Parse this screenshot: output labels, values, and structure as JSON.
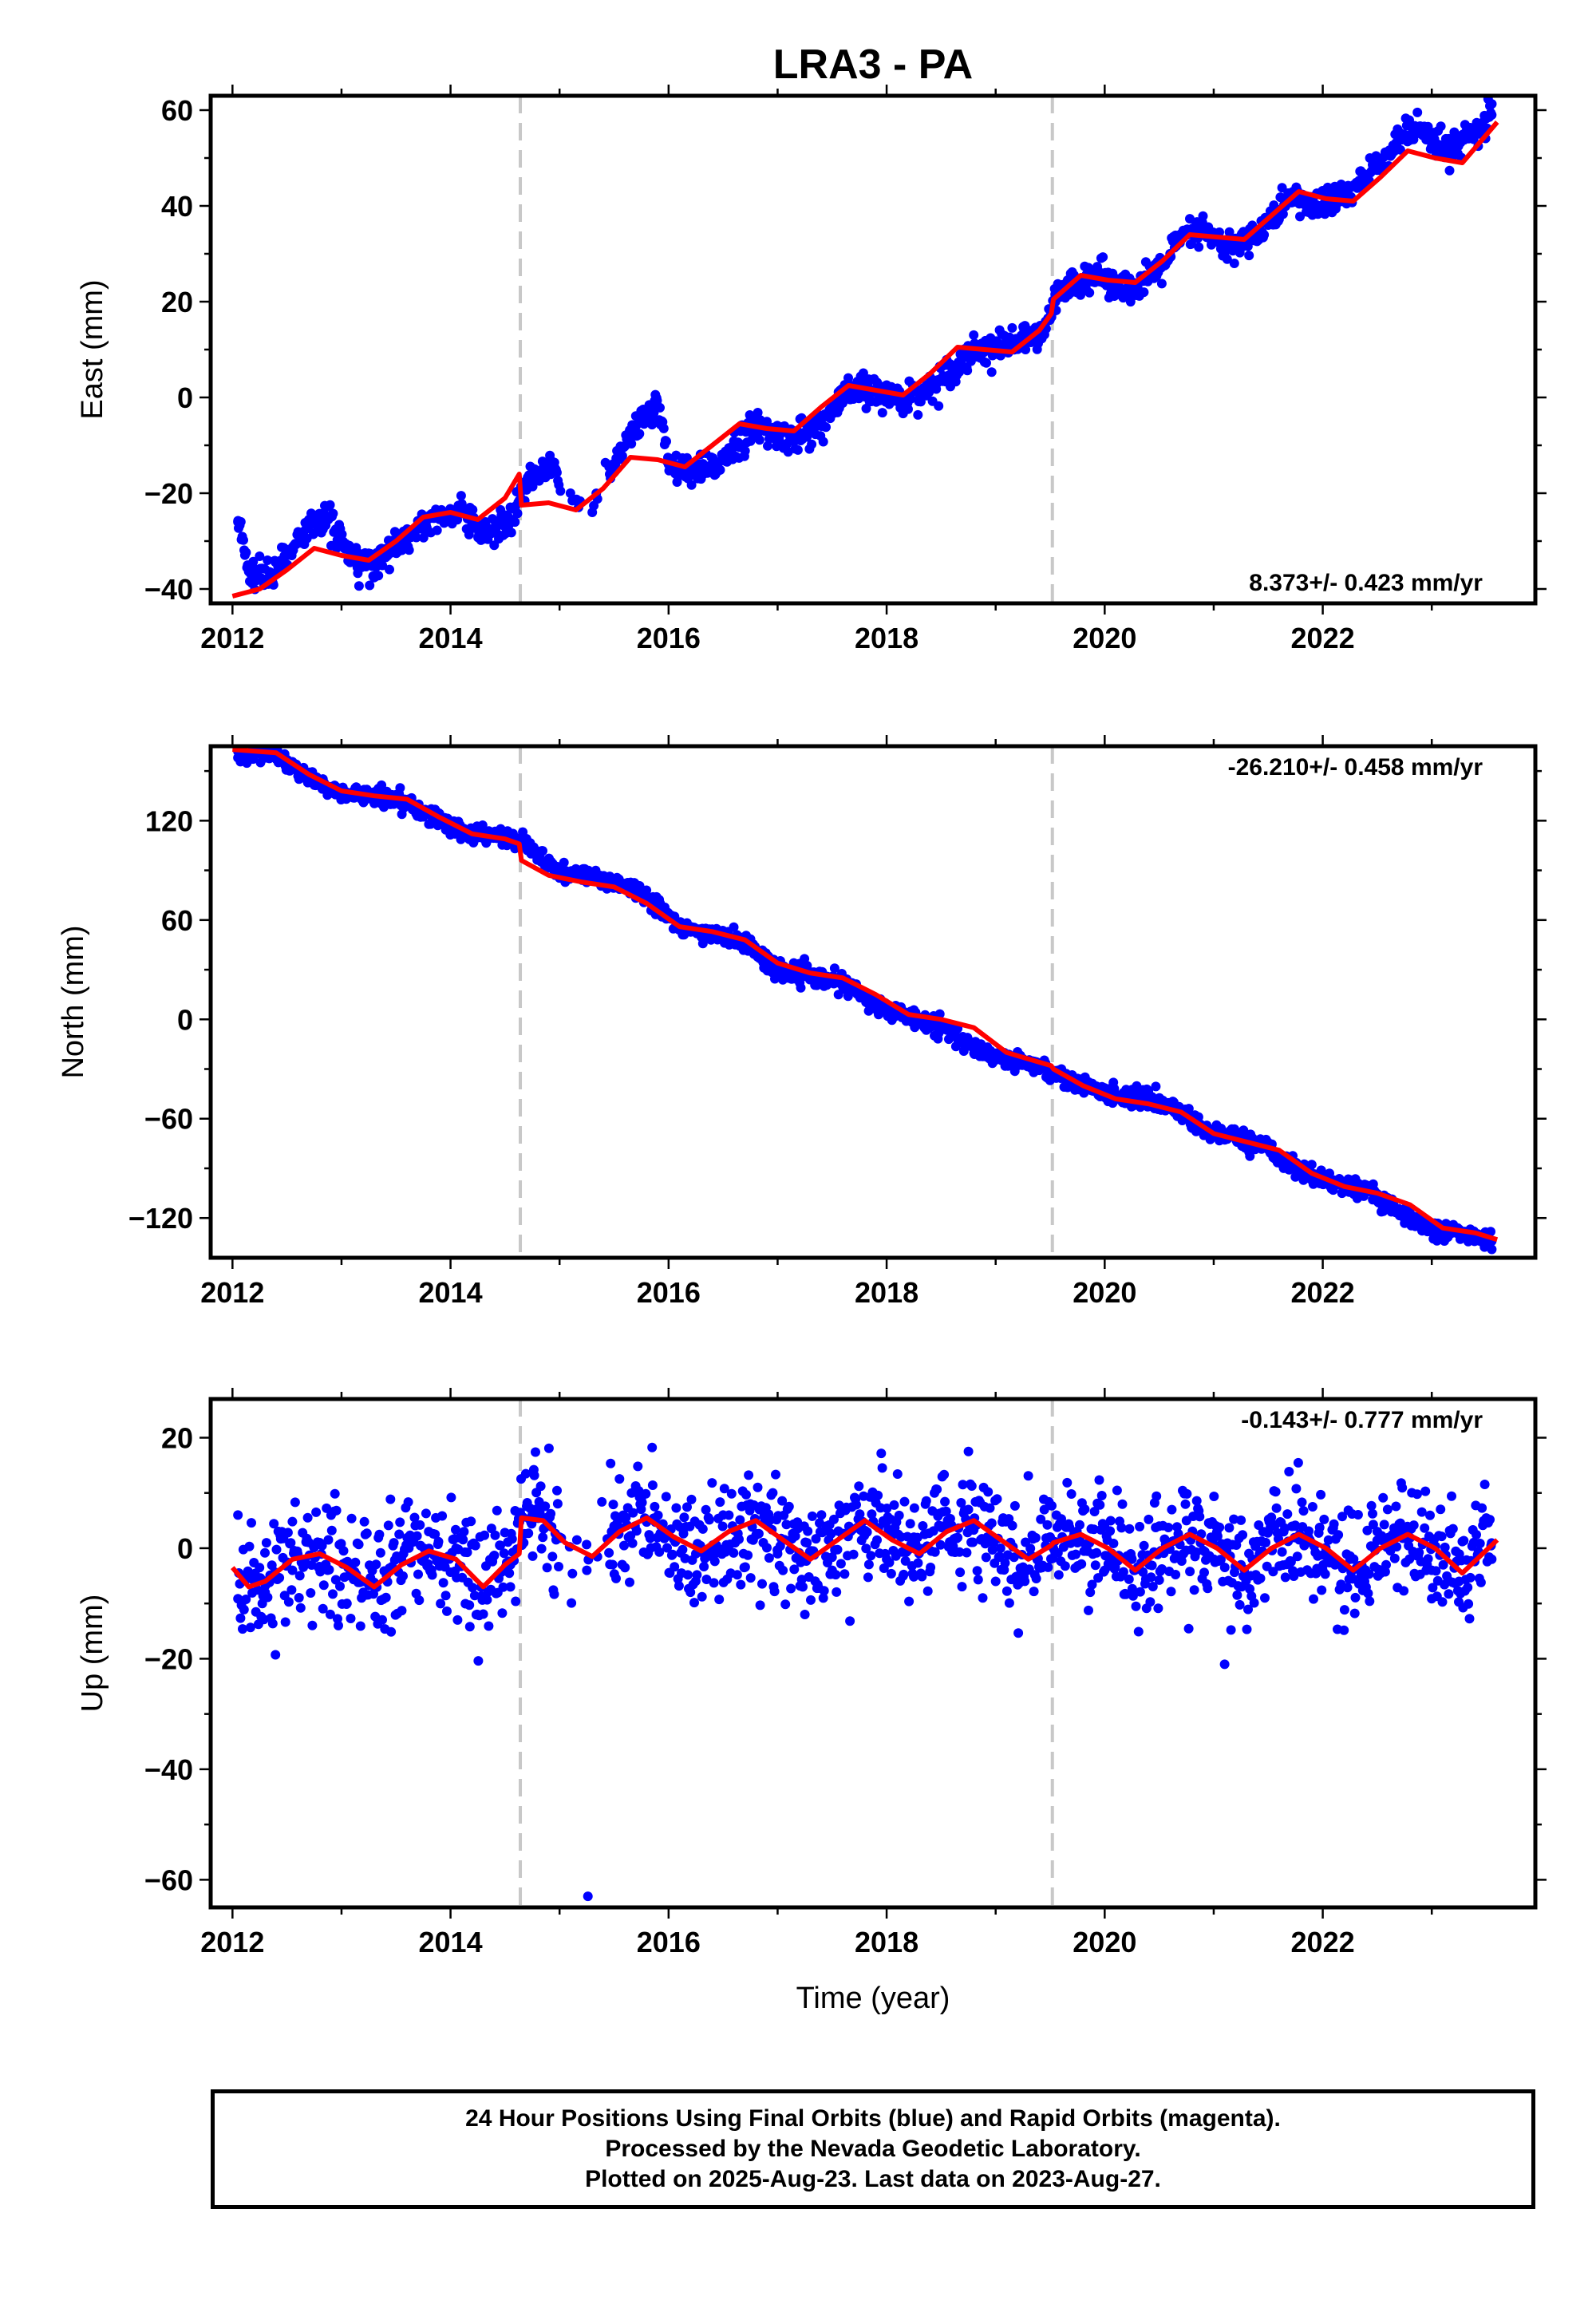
{
  "title": "LRA3 - PA",
  "colors": {
    "data": "#0000ff",
    "model": "#ff0000",
    "breaks": "#c8c8c8",
    "frame": "#000000"
  },
  "xlabel": "Time (year)",
  "chart_data": [
    {
      "type": "scatter",
      "ylabel": "East (mm)",
      "xlim": [
        2011.8,
        2023.95
      ],
      "ylim": [
        -43,
        63
      ],
      "xticks": [
        2012,
        2014,
        2016,
        2018,
        2020,
        2022
      ],
      "yticks": [
        -40,
        -20,
        0,
        20,
        40,
        60
      ],
      "breaks": [
        2014.64,
        2019.52
      ],
      "rate_label": "8.373+/- 0.423 mm/yr",
      "series": [
        {
          "role": "data",
          "x": [
            2012.05,
            2012.15,
            2012.3,
            2012.5,
            2012.7,
            2012.9,
            2013.1,
            2013.3,
            2013.5,
            2013.7,
            2013.9,
            2014.1,
            2014.3,
            2014.5,
            2014.62,
            2014.7,
            2014.9,
            2015.1,
            2015.3,
            2015.5,
            2015.7,
            2015.9,
            2016.0,
            2016.2,
            2016.4,
            2016.6,
            2016.8,
            2017.0,
            2017.2,
            2017.4,
            2017.6,
            2017.8,
            2018.0,
            2018.2,
            2018.4,
            2018.6,
            2018.8,
            2019.0,
            2019.2,
            2019.4,
            2019.55,
            2019.7,
            2019.9,
            2020.1,
            2020.3,
            2020.5,
            2020.7,
            2020.9,
            2021.1,
            2021.3,
            2021.5,
            2021.7,
            2021.9,
            2022.1,
            2022.3,
            2022.5,
            2022.7,
            2022.85,
            2023.0,
            2023.2,
            2023.4,
            2023.55
          ],
          "y": [
            -26,
            -36,
            -38,
            -33,
            -27,
            -25,
            -34,
            -35,
            -31,
            -27,
            -25,
            -24,
            -28,
            -27,
            -22,
            -18,
            -14,
            -20,
            -24,
            -14,
            -6,
            -2,
            -14,
            -16,
            -15,
            -10,
            -6,
            -8,
            -8,
            -6,
            0,
            2,
            0,
            0,
            2,
            6,
            10,
            10,
            12,
            12,
            20,
            24,
            26,
            24,
            22,
            27,
            33,
            35,
            31,
            33,
            36,
            42,
            40,
            41,
            44,
            48,
            54,
            56,
            53,
            52,
            55,
            59
          ]
        },
        {
          "role": "model",
          "x": [
            2012.0,
            2012.25,
            2012.5,
            2012.75,
            2013.0,
            2013.25,
            2013.5,
            2013.75,
            2014.0,
            2014.25,
            2014.5,
            2014.63,
            2014.65,
            2014.9,
            2015.15,
            2015.4,
            2015.65,
            2015.9,
            2016.15,
            2016.4,
            2016.65,
            2016.9,
            2017.15,
            2017.4,
            2017.65,
            2017.9,
            2018.15,
            2018.4,
            2018.65,
            2018.9,
            2019.15,
            2019.4,
            2019.51,
            2019.53,
            2019.78,
            2020.03,
            2020.28,
            2020.53,
            2020.78,
            2021.03,
            2021.28,
            2021.53,
            2021.78,
            2022.03,
            2022.28,
            2022.53,
            2022.78,
            2023.03,
            2023.28,
            2023.6
          ],
          "y": [
            -41.5,
            -40,
            -36,
            -31.5,
            -33,
            -34,
            -30,
            -25,
            -24,
            -25.5,
            -21,
            -16,
            -22.5,
            -22,
            -23.5,
            -19,
            -12.5,
            -13,
            -14.5,
            -10,
            -5.5,
            -6.5,
            -7,
            -2,
            2.5,
            1.5,
            0.5,
            5,
            10.5,
            10,
            9.5,
            14,
            17.5,
            20.5,
            25.5,
            24.5,
            24,
            28.5,
            34,
            33.5,
            33,
            38,
            43,
            41.5,
            41,
            46,
            51.5,
            50,
            49,
            57.5
          ]
        }
      ]
    },
    {
      "type": "scatter",
      "ylabel": "North (mm)",
      "xlim": [
        2011.8,
        2023.95
      ],
      "ylim": [
        -144,
        165
      ],
      "xticks": [
        2012,
        2014,
        2016,
        2018,
        2020,
        2022
      ],
      "yticks": [
        -120,
        -60,
        0,
        60,
        120
      ],
      "breaks": [
        2014.64,
        2019.52
      ],
      "rate_label": "-26.210+/- 0.458 mm/yr",
      "series": [
        {
          "role": "data",
          "x": [
            2012.05,
            2012.2,
            2012.4,
            2012.6,
            2012.8,
            2013.0,
            2013.3,
            2013.6,
            2013.9,
            2014.2,
            2014.5,
            2014.7,
            2015.0,
            2015.3,
            2015.6,
            2015.9,
            2016.1,
            2016.4,
            2016.7,
            2017.0,
            2017.3,
            2017.6,
            2017.9,
            2018.2,
            2018.5,
            2018.8,
            2019.1,
            2019.4,
            2019.7,
            2020.0,
            2020.3,
            2020.6,
            2020.9,
            2021.2,
            2021.5,
            2021.8,
            2022.1,
            2022.4,
            2022.7,
            2023.0,
            2023.3,
            2023.55
          ],
          "y": [
            158,
            162,
            160,
            150,
            142,
            137,
            136,
            132,
            120,
            112,
            110,
            105,
            88,
            86,
            82,
            70,
            54,
            52,
            46,
            30,
            25,
            22,
            8,
            2,
            -4,
            -18,
            -24,
            -28,
            -38,
            -44,
            -47,
            -52,
            -66,
            -71,
            -78,
            -92,
            -99,
            -104,
            -115,
            -127,
            -130,
            -134
          ]
        },
        {
          "role": "model",
          "x": [
            2012.0,
            2012.4,
            2012.7,
            2013.0,
            2013.3,
            2013.6,
            2013.9,
            2014.2,
            2014.5,
            2014.63,
            2014.65,
            2014.9,
            2015.2,
            2015.5,
            2015.8,
            2016.1,
            2016.4,
            2016.7,
            2017.0,
            2017.3,
            2017.6,
            2017.9,
            2018.2,
            2018.5,
            2018.8,
            2019.1,
            2019.51,
            2019.53,
            2019.8,
            2020.1,
            2020.4,
            2020.7,
            2021.0,
            2021.3,
            2021.6,
            2021.9,
            2022.2,
            2022.5,
            2022.8,
            2023.1,
            2023.4,
            2023.6
          ],
          "y": [
            163,
            161,
            148,
            138,
            135,
            133,
            122,
            112,
            109,
            106,
            96,
            87,
            83,
            80,
            70,
            56,
            53,
            48,
            34,
            28,
            25,
            15,
            3,
            0,
            -5,
            -20,
            -28,
            -30,
            -40,
            -48,
            -51,
            -56,
            -69,
            -74,
            -79,
            -93,
            -101,
            -105,
            -112,
            -126,
            -129,
            -133
          ]
        }
      ]
    },
    {
      "type": "scatter",
      "ylabel": "Up (mm)",
      "xlim": [
        2011.8,
        2023.95
      ],
      "ylim": [
        -65,
        27
      ],
      "xticks": [
        2012,
        2014,
        2016,
        2018,
        2020,
        2022
      ],
      "yticks": [
        -60,
        -40,
        -20,
        0,
        20
      ],
      "breaks": [
        2014.64,
        2019.52
      ],
      "rate_label": "-0.143+/- 0.777 mm/yr",
      "series": [
        {
          "role": "data",
          "x": [
            2012.05,
            2012.3,
            2012.55,
            2012.8,
            2013.05,
            2013.3,
            2013.55,
            2013.8,
            2014.05,
            2014.3,
            2014.55,
            2014.75,
            2015.0,
            2015.25,
            2015.26,
            2015.5,
            2015.75,
            2016.0,
            2016.25,
            2016.5,
            2016.75,
            2017.0,
            2017.25,
            2017.5,
            2017.75,
            2018.0,
            2018.25,
            2018.5,
            2018.75,
            2019.0,
            2019.25,
            2019.5,
            2019.75,
            2020.0,
            2020.25,
            2020.5,
            2020.75,
            2021.0,
            2021.1,
            2021.25,
            2021.5,
            2021.75,
            2022.0,
            2022.25,
            2022.5,
            2022.75,
            2023.0,
            2023.25,
            2023.55
          ],
          "y": [
            6,
            -8,
            -4,
            1,
            -10,
            -7,
            -2,
            3,
            0,
            -9,
            -3,
            6,
            2,
            -4,
            -63,
            4,
            9,
            3,
            -1,
            6,
            8,
            -1,
            -12,
            -4,
            4,
            -2,
            2,
            4,
            7,
            -6,
            -4,
            2,
            1,
            -4,
            -2,
            4,
            5,
            -2,
            -21,
            -3,
            3,
            4,
            -4,
            -2,
            3,
            3,
            -4,
            -6,
            -2
          ]
        },
        {
          "role": "model",
          "x": [
            2012.0,
            2012.15,
            2012.3,
            2012.55,
            2012.8,
            2013.05,
            2013.3,
            2013.55,
            2013.8,
            2014.05,
            2014.3,
            2014.5,
            2014.63,
            2014.65,
            2014.85,
            2015.05,
            2015.3,
            2015.55,
            2015.8,
            2016.05,
            2016.3,
            2016.55,
            2016.8,
            2017.05,
            2017.3,
            2017.55,
            2017.8,
            2018.05,
            2018.3,
            2018.55,
            2018.8,
            2019.05,
            2019.3,
            2019.51,
            2019.53,
            2019.78,
            2020.03,
            2020.28,
            2020.53,
            2020.78,
            2021.03,
            2021.28,
            2021.53,
            2021.78,
            2022.03,
            2022.28,
            2022.53,
            2022.78,
            2023.03,
            2023.28,
            2023.6
          ],
          "y": [
            -3.5,
            -7,
            -6,
            -2,
            -1,
            -3.5,
            -7,
            -3,
            -0.5,
            -2,
            -7,
            -3,
            -1,
            5.5,
            5,
            1,
            -1.5,
            3,
            5.5,
            2,
            -0.5,
            3,
            5,
            1.5,
            -2,
            1.5,
            5,
            1.5,
            -1,
            3,
            5,
            1.5,
            -2,
            0.5,
            1,
            2.5,
            0,
            -4,
            0,
            2.5,
            0,
            -4,
            0,
            2.5,
            0,
            -4,
            0,
            2.5,
            0,
            -4.5,
            1.5
          ]
        }
      ]
    }
  ],
  "footer": {
    "line1": "24 Hour Positions Using Final Orbits (blue) and Rapid Orbits (magenta).",
    "line2": "Processed by the Nevada Geodetic Laboratory.",
    "line3": "Plotted on 2025-Aug-23. Last data on 2023-Aug-27."
  }
}
